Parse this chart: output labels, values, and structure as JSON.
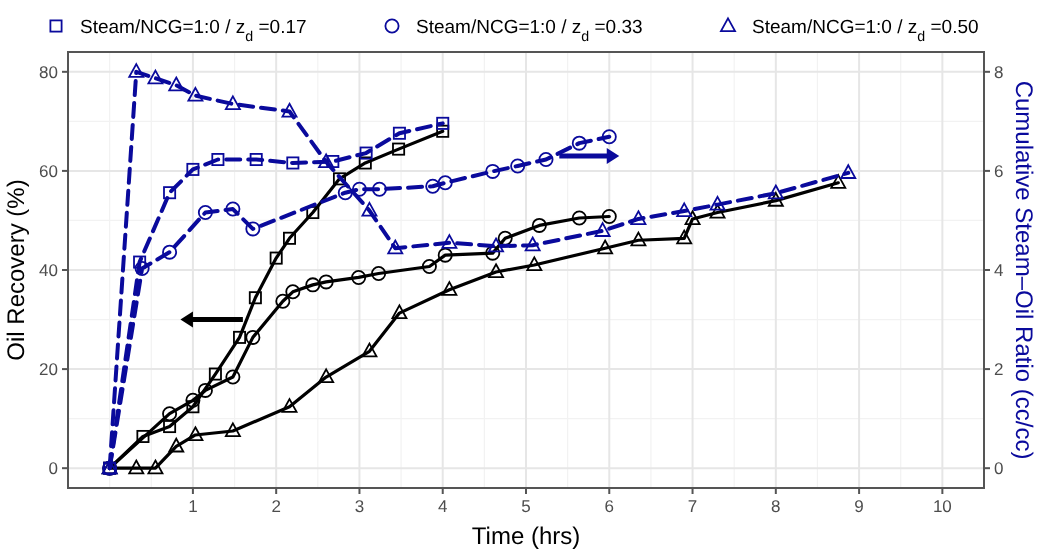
{
  "chart_data": {
    "type": "line",
    "xlabel": "Time (hrs)",
    "ylabel": "Oil Recovery (%)",
    "y2label": "Cumulative Steam–Oil Ratio (cc/cc)",
    "xlim": [
      -0.5,
      10.5
    ],
    "xticks": [
      1,
      2,
      3,
      4,
      5,
      6,
      7,
      8,
      9,
      10
    ],
    "ylim": [
      -4,
      84
    ],
    "yticks": [
      0,
      20,
      40,
      60,
      80
    ],
    "y2lim": [
      -0.4,
      8.4
    ],
    "y2ticks": [
      0,
      2,
      4,
      6,
      8
    ],
    "grid": true,
    "legend": "top",
    "series": [
      {
        "color": "#000000",
        "marker": "square",
        "line_style": "solid",
        "x": [
          0,
          0.4,
          0.72,
          1.0,
          1.27,
          1.56,
          1.75,
          2.0,
          2.16,
          2.44,
          2.76,
          3.07,
          3.47,
          4.0
        ],
        "values": [
          0,
          6.4,
          8.4,
          12.4,
          19,
          26.4,
          34.4,
          42.4,
          46.4,
          51.6,
          58.4,
          61.6,
          64.4,
          68
        ]
      },
      {
        "color": "#000000",
        "marker": "circle",
        "line_style": "solid",
        "x": [
          0,
          0.72,
          1.0,
          1.15,
          1.48,
          1.72,
          2.08,
          2.2,
          2.44,
          2.6,
          2.99,
          3.23,
          3.84,
          4.03,
          4.6,
          4.75,
          5.16,
          5.64,
          6.0
        ],
        "values": [
          0,
          11,
          13.7,
          15.7,
          18.4,
          26.4,
          33.7,
          35.6,
          37,
          37.6,
          38.5,
          39.3,
          40.7,
          43,
          43.4,
          46.4,
          49,
          50.5,
          50.8
        ]
      },
      {
        "color": "#000000",
        "marker": "triangle",
        "line_style": "solid",
        "x": [
          0,
          0.32,
          0.55,
          0.8,
          1.03,
          1.48,
          2.16,
          2.6,
          3.12,
          3.48,
          4.08,
          4.64,
          5.1,
          5.95,
          6.35,
          6.9,
          7.0,
          7.3,
          8.0,
          8.75
        ],
        "values": [
          0,
          0,
          0,
          4.4,
          6.7,
          7.5,
          12.4,
          18.4,
          23.6,
          31.3,
          36,
          39.6,
          41,
          44.4,
          46,
          46.4,
          50.3,
          51.6,
          54,
          57.6
        ]
      },
      {
        "name": "Steam/NCG=1:0 / z$_{d}$ =0.17",
        "color": "#0a0a9c",
        "marker": "square",
        "line_style": "dashed",
        "axis": "y2",
        "x": [
          0,
          0.36,
          0.72,
          1.0,
          1.3,
          1.76,
          2.2,
          2.68,
          3.08,
          3.48,
          4.0
        ],
        "values": [
          0,
          4.16,
          5.56,
          6.03,
          6.23,
          6.23,
          6.16,
          6.19,
          6.36,
          6.76,
          6.96
        ]
      },
      {
        "name": "Steam/NCG=1:0 / z$_{d}$ =0.33",
        "color": "#0a0a9c",
        "marker": "circle",
        "line_style": "dashed",
        "axis": "y2",
        "x": [
          0,
          0.39,
          0.72,
          1.15,
          1.48,
          1.72,
          2.83,
          3.0,
          3.24,
          3.88,
          4.03,
          4.6,
          4.9,
          5.24,
          5.64,
          6.0
        ],
        "values": [
          0,
          4.03,
          4.36,
          5.16,
          5.23,
          4.83,
          5.56,
          5.63,
          5.63,
          5.69,
          5.76,
          5.99,
          6.1,
          6.23,
          6.56,
          6.69
        ]
      },
      {
        "name": "Steam/NCG=1:0 / z$_{d}$ =0.50",
        "color": "#0a0a9c",
        "marker": "triangle",
        "line_style": "dashed",
        "axis": "y2",
        "x": [
          0,
          0.32,
          0.55,
          0.8,
          1.03,
          1.48,
          2.16,
          2.6,
          3.12,
          3.43,
          4.08,
          4.64,
          5.08,
          5.92,
          6.35,
          6.9,
          7.3,
          8.0,
          8.87
        ],
        "values": [
          0,
          8.0,
          7.87,
          7.73,
          7.52,
          7.35,
          7.2,
          6.18,
          5.2,
          4.44,
          4.55,
          4.48,
          4.5,
          4.79,
          5.03,
          5.19,
          5.32,
          5.55,
          5.96
        ]
      }
    ]
  }
}
